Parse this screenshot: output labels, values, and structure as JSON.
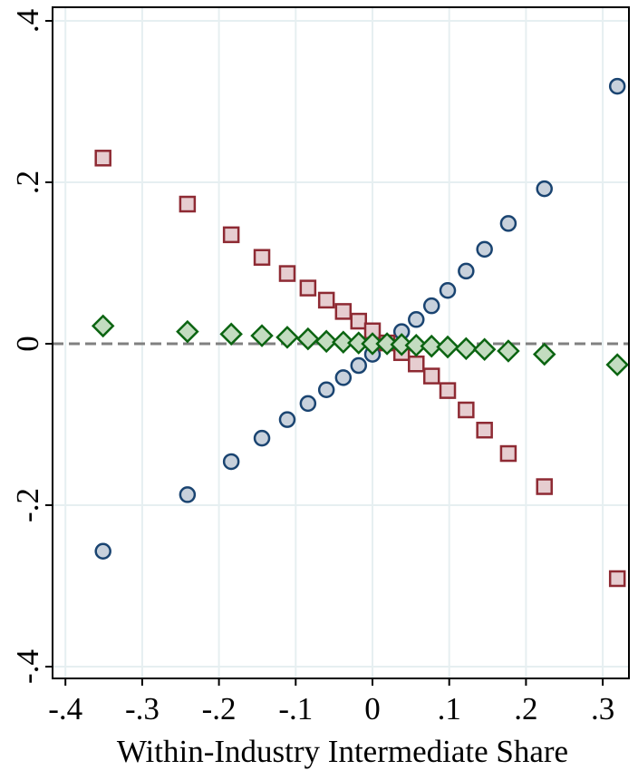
{
  "chart_data": {
    "type": "scatter",
    "title": "",
    "xlabel": "Within-Industry Intermediate Share",
    "ylabel": "",
    "xlim": [
      -0.42,
      0.335
    ],
    "ylim": [
      -0.415,
      0.415
    ],
    "x_ticks": [
      -0.4,
      -0.3,
      -0.2,
      -0.1,
      0,
      0.1,
      0.2,
      0.3
    ],
    "x_tick_labels": [
      "-.4",
      "-.3",
      "-.2",
      "-.1",
      "0",
      ".1",
      ".2",
      ".3"
    ],
    "y_ticks": [
      -0.4,
      -0.2,
      0,
      0.2,
      0.4
    ],
    "y_tick_labels": [
      "-.4",
      "-.2",
      "0",
      ".2",
      ".4"
    ],
    "grid": true,
    "reference_line": {
      "y": 0,
      "style": "dashed",
      "color": "#808080"
    },
    "x": [
      -0.351,
      -0.241,
      -0.184,
      -0.144,
      -0.111,
      -0.084,
      -0.06,
      -0.038,
      -0.018,
      0.0,
      0.019,
      0.038,
      0.057,
      0.077,
      0.098,
      0.122,
      0.146,
      0.177,
      0.224,
      0.319
    ],
    "series": [
      {
        "marker": "circle",
        "fill": "#c8d1dc",
        "stroke": "#1a4471",
        "values": [
          -0.257,
          -0.187,
          -0.146,
          -0.117,
          -0.094,
          -0.074,
          -0.057,
          -0.042,
          -0.027,
          -0.013,
          0.0,
          0.015,
          0.03,
          0.047,
          0.066,
          0.09,
          0.117,
          0.149,
          0.192,
          0.319
        ]
      },
      {
        "marker": "square",
        "fill": "#e6cdd0",
        "stroke": "#8e2a33",
        "values": [
          0.23,
          0.173,
          0.135,
          0.107,
          0.087,
          0.069,
          0.054,
          0.04,
          0.028,
          0.016,
          0.001,
          -0.011,
          -0.025,
          -0.04,
          -0.058,
          -0.082,
          -0.107,
          -0.136,
          -0.177,
          -0.291
        ]
      },
      {
        "marker": "diamond",
        "fill": "#c3dcc0",
        "stroke": "#0b6411",
        "values": [
          0.022,
          0.015,
          0.012,
          0.01,
          0.008,
          0.006,
          0.003,
          0.002,
          0.001,
          0.0,
          0.0,
          -0.001,
          -0.002,
          -0.003,
          -0.004,
          -0.006,
          -0.007,
          -0.009,
          -0.013,
          -0.026
        ]
      }
    ]
  }
}
